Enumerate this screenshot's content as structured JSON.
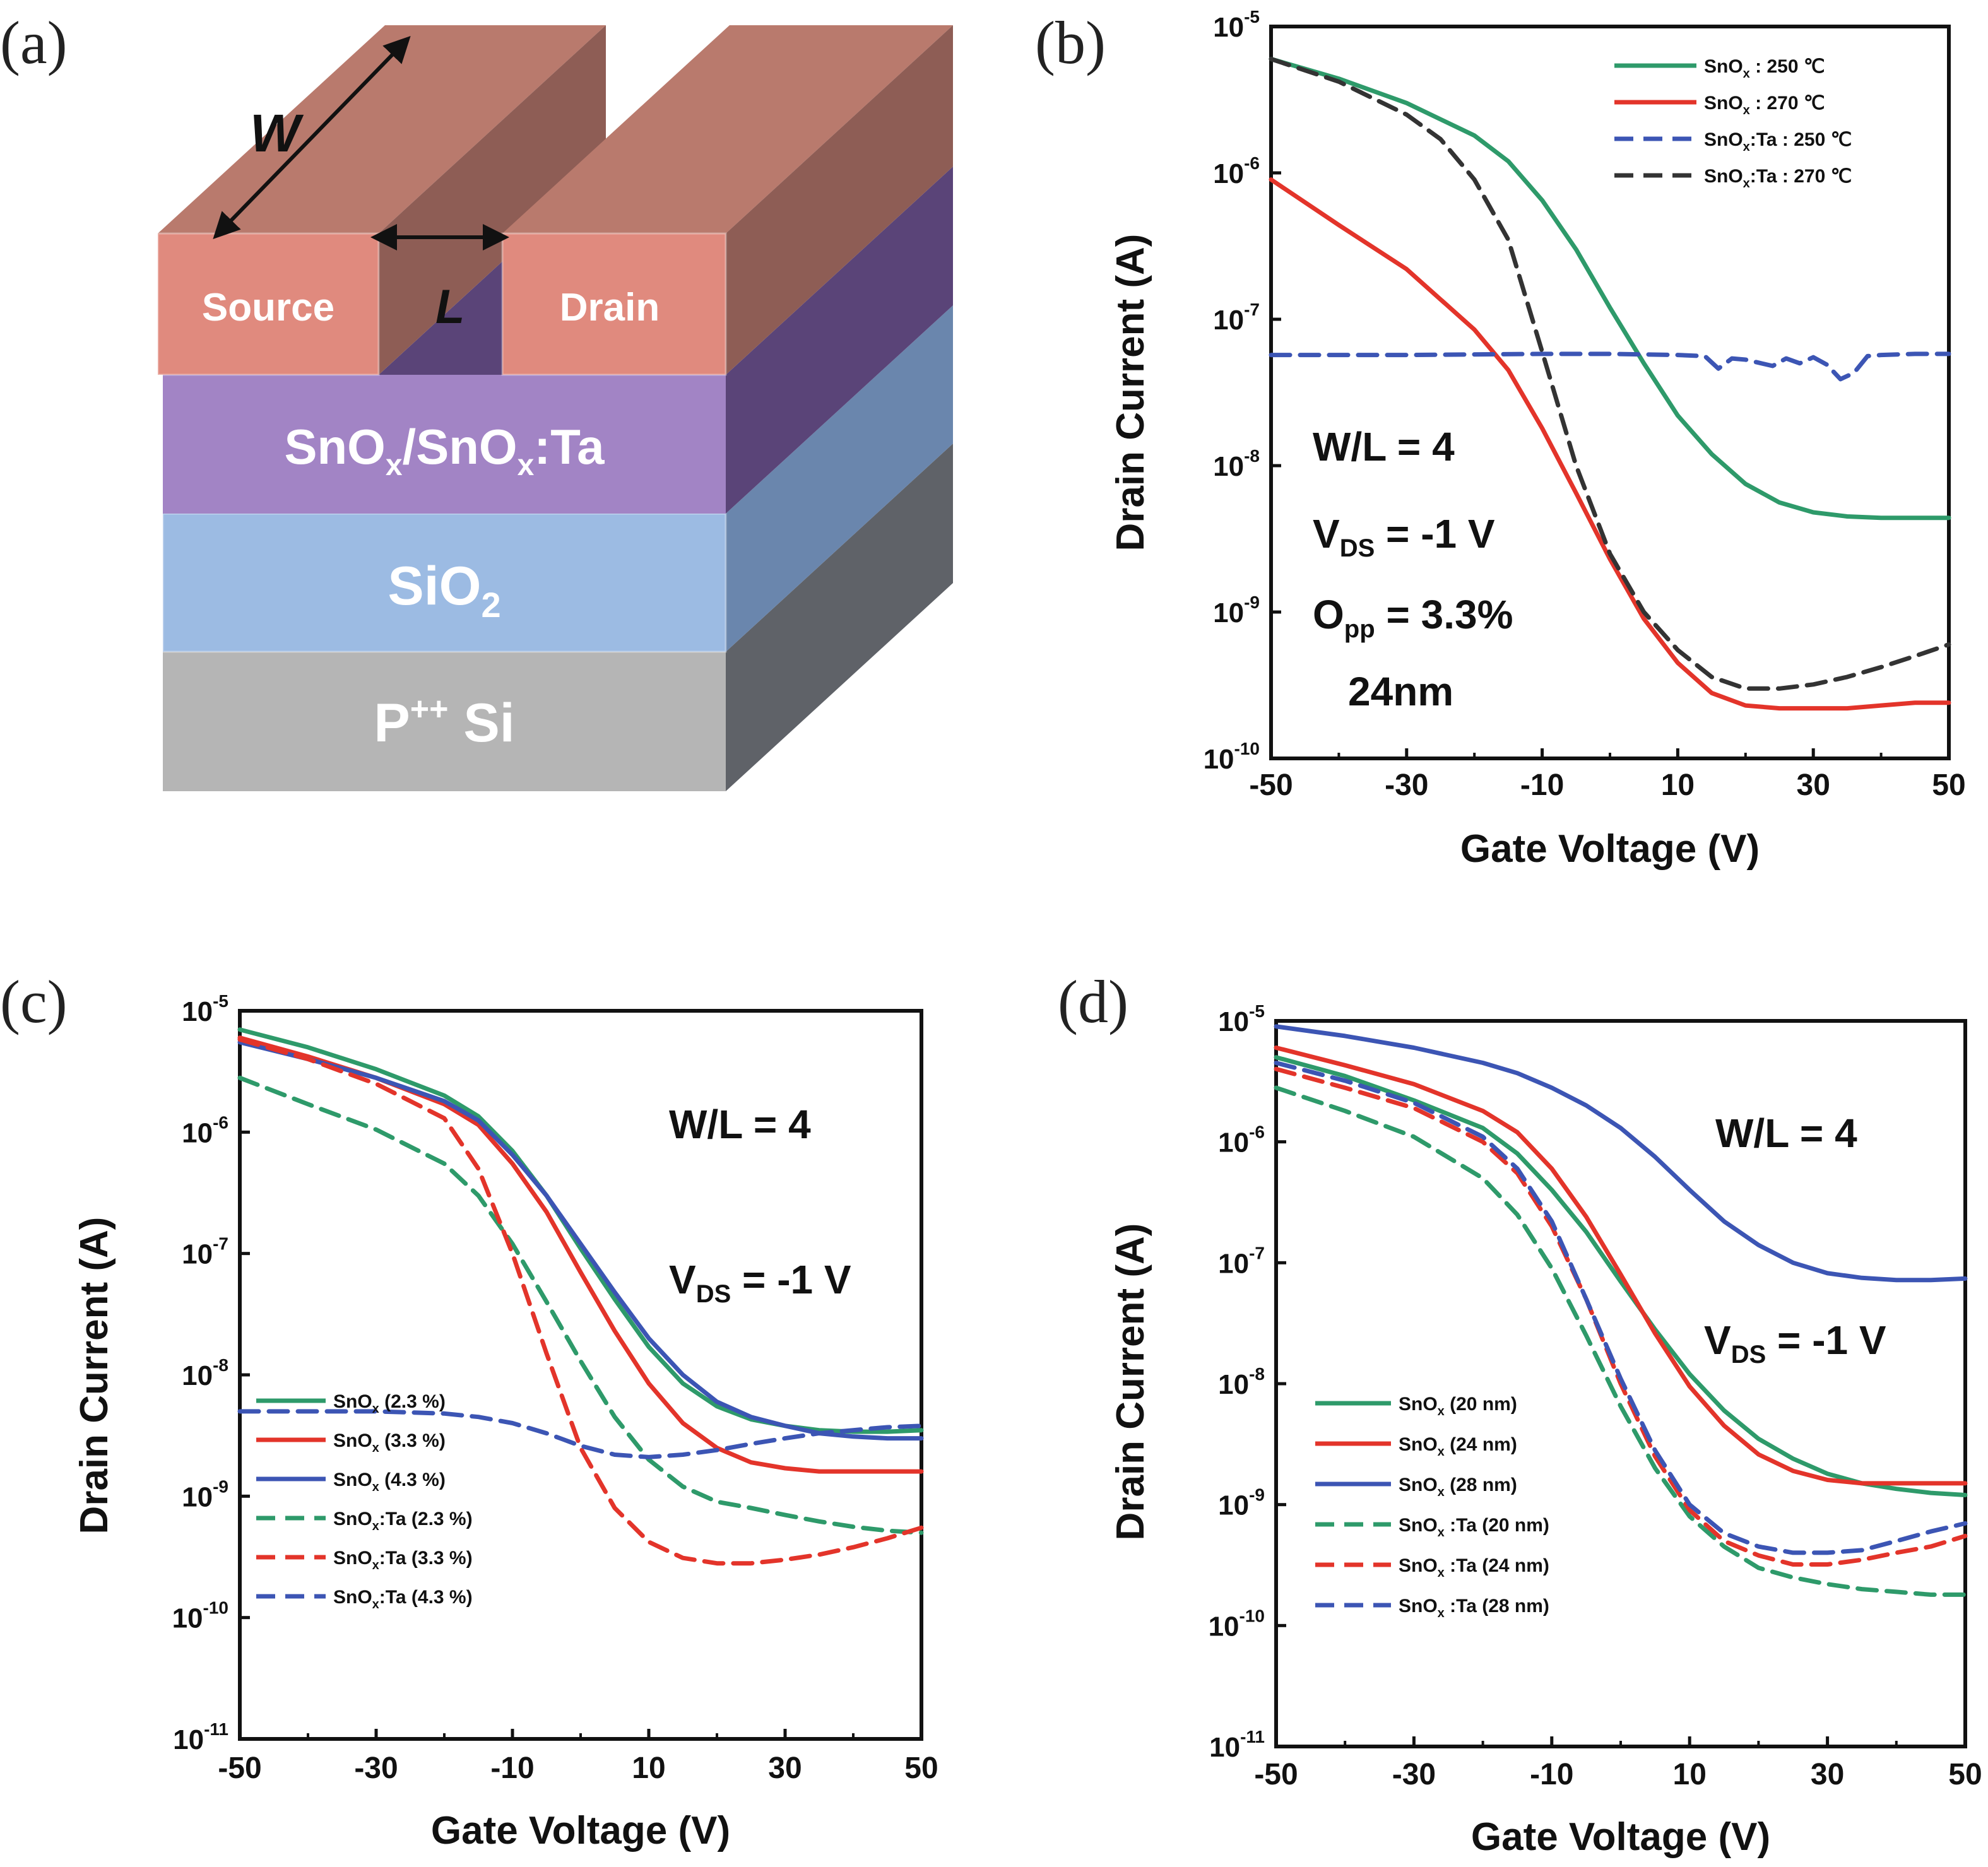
{
  "panels": {
    "a": {
      "letter": "(a)",
      "labels": {
        "width": "W",
        "length": "L",
        "source": "Source",
        "drain": "Drain",
        "channel": "SnOx/SnOx:Ta",
        "dielectric": "SiO2",
        "substrate": "P++ Si"
      }
    },
    "b": {
      "letter": "(b)"
    },
    "c": {
      "letter": "(c)"
    },
    "d": {
      "letter": "(d)"
    }
  },
  "colors": {
    "green": "#2e9a6a",
    "red": "#e3342a",
    "blue": "#3c55b4",
    "black": "#333333",
    "electrode_front": "#e08a7e",
    "electrode_top": "#b97a6d",
    "electrode_side": "#8e5d55",
    "channel_front": "#a284c5",
    "channel_side": "#5a4478",
    "oxide_front": "#9cbbe3",
    "oxide_side": "#6a86ad",
    "si_front": "#b5b5b5",
    "si_side": "#5f6268"
  },
  "chart_data": [
    {
      "panel": "b",
      "type": "line",
      "xlabel": "Gate Voltage (V)",
      "ylabel": "Drain Current (A)",
      "xlim": [
        -50,
        50
      ],
      "ylim": [
        1e-10,
        1e-05
      ],
      "yscale": "log",
      "xticks": [
        "-50",
        "-30",
        "-10",
        "10",
        "30",
        "50"
      ],
      "yticks": [
        {
          "base": "10",
          "exp": "-5"
        },
        {
          "base": "10",
          "exp": "-6"
        },
        {
          "base": "10",
          "exp": "-7"
        },
        {
          "base": "10",
          "exp": "-8"
        },
        {
          "base": "10",
          "exp": "-9"
        },
        {
          "base": "10",
          "exp": "-10"
        }
      ],
      "annotations": {
        "wl": "W/L = 4",
        "vds_main": "V",
        "vds_sub": "DS",
        "vds_rest": " = -1 V",
        "opp_main": "O",
        "opp_sub": "pp",
        "opp_rest": " = 3.3%",
        "thickness": "24nm"
      },
      "legend_position": "top-right",
      "series": [
        {
          "name": "SnOx : 250 ℃",
          "name_parts": [
            "SnO",
            "x",
            " : 250 ℃"
          ],
          "color": "green",
          "dash": false,
          "x": [
            -50,
            -40,
            -30,
            -20,
            -15,
            -10,
            -5,
            0,
            5,
            10,
            15,
            20,
            25,
            30,
            35,
            40,
            45,
            50
          ],
          "y": [
            6e-06,
            4.4e-06,
            3e-06,
            1.8e-06,
            1.2e-06,
            6.5e-07,
            3e-07,
            1.2e-07,
            5e-08,
            2.2e-08,
            1.2e-08,
            7.5e-09,
            5.6e-09,
            4.8e-09,
            4.5e-09,
            4.4e-09,
            4.4e-09,
            4.4e-09
          ]
        },
        {
          "name": "SnOx : 270 ℃",
          "name_parts": [
            "SnO",
            "x",
            " : 270 ℃"
          ],
          "color": "red",
          "dash": false,
          "x": [
            -50,
            -40,
            -30,
            -20,
            -15,
            -10,
            -5,
            0,
            5,
            10,
            15,
            20,
            25,
            30,
            35,
            40,
            45,
            50
          ],
          "y": [
            9e-07,
            4.4e-07,
            2.2e-07,
            8.5e-08,
            4.5e-08,
            1.8e-08,
            6.5e-09,
            2.3e-09,
            9e-10,
            4.5e-10,
            2.8e-10,
            2.3e-10,
            2.2e-10,
            2.2e-10,
            2.2e-10,
            2.3e-10,
            2.4e-10,
            2.4e-10
          ]
        },
        {
          "name": "SnOx:Ta : 250 ℃",
          "name_parts": [
            "SnO",
            "x",
            ":Ta : 250 ℃"
          ],
          "color": "blue",
          "dash": true,
          "x": [
            -50,
            -30,
            -10,
            0,
            10,
            14,
            16,
            18,
            20,
            24,
            26,
            28,
            30,
            32,
            34,
            36,
            38,
            40,
            45,
            50
          ],
          "y": [
            5.7e-08,
            5.7e-08,
            5.8e-08,
            5.8e-08,
            5.7e-08,
            5.6e-08,
            4.6e-08,
            5.4e-08,
            5.3e-08,
            4.8e-08,
            5.4e-08,
            5e-08,
            5.5e-08,
            4.9e-08,
            3.9e-08,
            4.3e-08,
            5.6e-08,
            5.7e-08,
            5.8e-08,
            5.8e-08
          ]
        },
        {
          "name": "SnOx:Ta : 270 ℃",
          "name_parts": [
            "SnO",
            "x",
            ":Ta : 270 ℃"
          ],
          "color": "black",
          "dash": true,
          "x": [
            -50,
            -40,
            -30,
            -25,
            -20,
            -15,
            -10,
            -5,
            0,
            5,
            10,
            15,
            20,
            25,
            30,
            35,
            40,
            45,
            50
          ],
          "y": [
            6e-06,
            4.2e-06,
            2.5e-06,
            1.7e-06,
            9e-07,
            3.5e-07,
            6e-08,
            1e-08,
            2.5e-09,
            1e-09,
            5.5e-10,
            3.6e-10,
            3e-10,
            3e-10,
            3.2e-10,
            3.6e-10,
            4.2e-10,
            5e-10,
            6e-10
          ]
        }
      ]
    },
    {
      "panel": "c",
      "type": "line",
      "xlabel": "Gate Voltage (V)",
      "ylabel": "Drain Current (A)",
      "xlim": [
        -50,
        50
      ],
      "ylim": [
        1e-11,
        1e-05
      ],
      "yscale": "log",
      "xticks": [
        "-50",
        "-30",
        "-10",
        "10",
        "30",
        "50"
      ],
      "yticks": [
        {
          "base": "10",
          "exp": "-5"
        },
        {
          "base": "10",
          "exp": "-6"
        },
        {
          "base": "10",
          "exp": "-7"
        },
        {
          "base": "10",
          "exp": "-8"
        },
        {
          "base": "10",
          "exp": "-9"
        },
        {
          "base": "10",
          "exp": "-10"
        },
        {
          "base": "10",
          "exp": "-11"
        }
      ],
      "annotations": {
        "wl": "W/L = 4",
        "vds_main": "V",
        "vds_sub": "DS",
        "vds_rest": " = -1 V"
      },
      "legend_position": "lower-left",
      "series": [
        {
          "name": "SnOx (2.3 %)",
          "name_parts": [
            "SnO",
            "x",
            " (2.3 %)"
          ],
          "color": "green",
          "dash": false,
          "x": [
            -50,
            -40,
            -30,
            -20,
            -15,
            -10,
            -5,
            0,
            5,
            10,
            15,
            20,
            25,
            30,
            35,
            40,
            45,
            50
          ],
          "y": [
            7e-06,
            5e-06,
            3.3e-06,
            2e-06,
            1.35e-06,
            7e-07,
            3e-07,
            1.1e-07,
            4.2e-08,
            1.7e-08,
            8.5e-09,
            5.5e-09,
            4.3e-09,
            3.8e-09,
            3.5e-09,
            3.4e-09,
            3.4e-09,
            3.5e-09
          ]
        },
        {
          "name": "SnOx (3.3 %)",
          "name_parts": [
            "SnO",
            "x",
            " (3.3 %)"
          ],
          "color": "red",
          "dash": false,
          "x": [
            -50,
            -40,
            -30,
            -20,
            -15,
            -10,
            -5,
            0,
            5,
            10,
            15,
            20,
            25,
            30,
            35,
            40,
            45,
            50
          ],
          "y": [
            6e-06,
            4.2e-06,
            2.8e-06,
            1.7e-06,
            1.15e-06,
            5.5e-07,
            2.2e-07,
            7e-08,
            2.3e-08,
            8.5e-09,
            4e-09,
            2.5e-09,
            1.9e-09,
            1.7e-09,
            1.6e-09,
            1.6e-09,
            1.6e-09,
            1.6e-09
          ]
        },
        {
          "name": "SnOx (4.3 %)",
          "name_parts": [
            "SnO",
            "x",
            " (4.3 %)"
          ],
          "color": "blue",
          "dash": false,
          "x": [
            -50,
            -40,
            -30,
            -20,
            -15,
            -10,
            -5,
            0,
            5,
            10,
            15,
            20,
            25,
            30,
            35,
            40,
            45,
            50
          ],
          "y": [
            5.5e-06,
            4e-06,
            2.8e-06,
            1.8e-06,
            1.25e-06,
            6.5e-07,
            3e-07,
            1.2e-07,
            4.8e-08,
            2e-08,
            1e-08,
            6e-09,
            4.5e-09,
            3.8e-09,
            3.3e-09,
            3.1e-09,
            3e-09,
            3e-09
          ]
        },
        {
          "name": "SnOx:Ta (2.3 %)",
          "name_parts": [
            "SnO",
            "x",
            ":Ta (2.3 %)"
          ],
          "color": "green",
          "dash": true,
          "x": [
            -50,
            -40,
            -30,
            -20,
            -15,
            -10,
            -5,
            0,
            5,
            10,
            15,
            20,
            25,
            30,
            35,
            40,
            45,
            50
          ],
          "y": [
            2.8e-06,
            1.7e-06,
            1.05e-06,
            5.5e-07,
            3e-07,
            1.2e-07,
            4e-08,
            1.3e-08,
            4.5e-09,
            2e-09,
            1.2e-09,
            9e-10,
            8e-10,
            7e-10,
            6.2e-10,
            5.6e-10,
            5.2e-10,
            5e-10
          ]
        },
        {
          "name": "SnOx:Ta (3.3 %)",
          "name_parts": [
            "SnO",
            "x",
            ":Ta (3.3 %)"
          ],
          "color": "red",
          "dash": true,
          "x": [
            -50,
            -40,
            -30,
            -20,
            -15,
            -10,
            -5,
            0,
            5,
            10,
            15,
            20,
            25,
            30,
            35,
            40,
            45,
            50
          ],
          "y": [
            5.8e-06,
            4e-06,
            2.5e-06,
            1.3e-06,
            5e-07,
            1e-07,
            1.5e-08,
            2.5e-09,
            8e-10,
            4.2e-10,
            3.1e-10,
            2.8e-10,
            2.8e-10,
            3e-10,
            3.3e-10,
            3.8e-10,
            4.5e-10,
            5.5e-10
          ]
        },
        {
          "name": "SnOx:Ta (4.3 %)",
          "name_parts": [
            "SnO",
            "x",
            ":Ta (4.3 %)"
          ],
          "color": "blue",
          "dash": true,
          "x": [
            -50,
            -40,
            -30,
            -20,
            -15,
            -10,
            -5,
            0,
            5,
            10,
            15,
            20,
            25,
            30,
            35,
            40,
            45,
            50
          ],
          "y": [
            5e-09,
            5e-09,
            5e-09,
            4.8e-09,
            4.5e-09,
            4e-09,
            3.3e-09,
            2.6e-09,
            2.2e-09,
            2.1e-09,
            2.2e-09,
            2.4e-09,
            2.7e-09,
            3e-09,
            3.3e-09,
            3.5e-09,
            3.7e-09,
            3.8e-09
          ]
        }
      ]
    },
    {
      "panel": "d",
      "type": "line",
      "xlabel": "Gate Voltage (V)",
      "ylabel": "Drain Current (A)",
      "xlim": [
        -50,
        50
      ],
      "ylim": [
        1e-11,
        1e-05
      ],
      "yscale": "log",
      "xticks": [
        "-50",
        "-30",
        "-10",
        "10",
        "30",
        "50"
      ],
      "yticks": [
        {
          "base": "10",
          "exp": "-5"
        },
        {
          "base": "10",
          "exp": "-6"
        },
        {
          "base": "10",
          "exp": "-7"
        },
        {
          "base": "10",
          "exp": "-8"
        },
        {
          "base": "10",
          "exp": "-9"
        },
        {
          "base": "10",
          "exp": "-10"
        },
        {
          "base": "10",
          "exp": "-11"
        }
      ],
      "annotations": {
        "wl": "W/L = 4",
        "vds_main": "V",
        "vds_sub": "DS",
        "vds_rest": " = -1 V"
      },
      "legend_position": "lower-left",
      "series": [
        {
          "name": "SnOx (20 nm)",
          "name_parts": [
            "SnO",
            "x",
            " (20 nm)"
          ],
          "color": "green",
          "dash": false,
          "x": [
            -50,
            -40,
            -30,
            -20,
            -15,
            -10,
            -5,
            0,
            5,
            10,
            15,
            20,
            25,
            30,
            35,
            40,
            45,
            50
          ],
          "y": [
            5e-06,
            3.5e-06,
            2.2e-06,
            1.3e-06,
            8e-07,
            4e-07,
            1.8e-07,
            7e-08,
            2.8e-08,
            1.2e-08,
            6e-09,
            3.5e-09,
            2.4e-09,
            1.8e-09,
            1.5e-09,
            1.35e-09,
            1.25e-09,
            1.2e-09
          ]
        },
        {
          "name": "SnOx (24 nm)",
          "name_parts": [
            "SnO",
            "x",
            " (24 nm)"
          ],
          "color": "red",
          "dash": false,
          "x": [
            -50,
            -40,
            -30,
            -20,
            -15,
            -10,
            -5,
            0,
            5,
            10,
            15,
            20,
            25,
            30,
            35,
            40,
            45,
            50
          ],
          "y": [
            6e-06,
            4.3e-06,
            3e-06,
            1.8e-06,
            1.2e-06,
            6e-07,
            2.4e-07,
            8e-08,
            2.6e-08,
            9.5e-09,
            4.5e-09,
            2.6e-09,
            1.9e-09,
            1.6e-09,
            1.5e-09,
            1.5e-09,
            1.5e-09,
            1.5e-09
          ]
        },
        {
          "name": "SnOx (28 nm)",
          "name_parts": [
            "SnO",
            "x",
            " (28 nm)"
          ],
          "color": "blue",
          "dash": false,
          "x": [
            -50,
            -40,
            -30,
            -20,
            -15,
            -10,
            -5,
            0,
            5,
            10,
            15,
            20,
            25,
            30,
            35,
            40,
            45,
            50
          ],
          "y": [
            9e-06,
            7.5e-06,
            6e-06,
            4.5e-06,
            3.7e-06,
            2.8e-06,
            2e-06,
            1.3e-06,
            7.5e-07,
            4e-07,
            2.2e-07,
            1.4e-07,
            1e-07,
            8.2e-08,
            7.5e-08,
            7.2e-08,
            7.2e-08,
            7.4e-08
          ]
        },
        {
          "name": "SnOx :Ta (20 nm)",
          "name_parts": [
            "SnO",
            "x",
            " :Ta (20 nm)"
          ],
          "color": "green",
          "dash": true,
          "x": [
            -50,
            -40,
            -30,
            -20,
            -15,
            -10,
            -5,
            0,
            5,
            10,
            15,
            20,
            25,
            30,
            35,
            40,
            45,
            50
          ],
          "y": [
            2.8e-06,
            1.8e-06,
            1.1e-06,
            5e-07,
            2.5e-07,
            9e-08,
            2.5e-08,
            6.5e-09,
            2e-09,
            8e-10,
            4.5e-10,
            3e-10,
            2.5e-10,
            2.2e-10,
            2e-10,
            1.9e-10,
            1.8e-10,
            1.8e-10
          ]
        },
        {
          "name": "SnOx :Ta (24 nm)",
          "name_parts": [
            "SnO",
            "x",
            " :Ta (24 nm)"
          ],
          "color": "red",
          "dash": true,
          "x": [
            -50,
            -40,
            -30,
            -20,
            -15,
            -10,
            -5,
            0,
            5,
            10,
            15,
            20,
            25,
            30,
            35,
            40,
            45,
            50
          ],
          "y": [
            4e-06,
            2.8e-06,
            1.9e-06,
            1e-06,
            5.5e-07,
            2e-07,
            5e-08,
            1e-08,
            2.5e-09,
            9e-10,
            5e-10,
            3.8e-10,
            3.2e-10,
            3.2e-10,
            3.5e-10,
            4e-10,
            4.5e-10,
            5.5e-10
          ]
        },
        {
          "name": "SnOx :Ta (28 nm)",
          "name_parts": [
            "SnO",
            "x",
            " :Ta (28 nm)"
          ],
          "color": "blue",
          "dash": true,
          "x": [
            -50,
            -40,
            -30,
            -20,
            -15,
            -10,
            -5,
            0,
            5,
            10,
            15,
            20,
            25,
            30,
            35,
            40,
            45,
            50
          ],
          "y": [
            4.5e-06,
            3.2e-06,
            2.1e-06,
            1.1e-06,
            6e-07,
            2.2e-07,
            5e-08,
            1.1e-08,
            2.8e-09,
            1e-09,
            5.8e-10,
            4.5e-10,
            4e-10,
            4e-10,
            4.2e-10,
            5e-10,
            6e-10,
            7e-10
          ]
        }
      ]
    }
  ]
}
